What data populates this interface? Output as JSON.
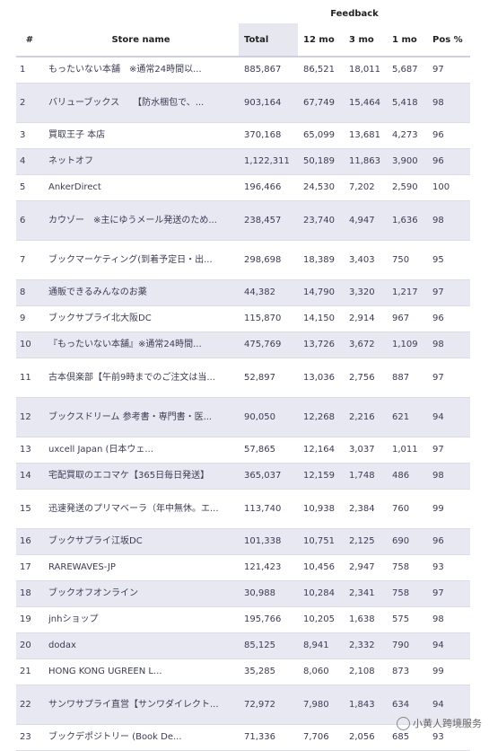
{
  "header": {
    "group_label": "Feedback",
    "columns": {
      "num": "#",
      "name": "Store name",
      "total": "Total",
      "m12": "12 mo",
      "m3": "3 mo",
      "m1": "1 mo",
      "pos": "Pos %"
    }
  },
  "rows": [
    {
      "num": "1",
      "name": "もったいない本舗　※通常24時間以...",
      "total": "885,867",
      "m12": "86,521",
      "m3": "18,011",
      "m1": "5,687",
      "pos": "97"
    },
    {
      "num": "2",
      "name": "バリューブックス　　【防水梱包で、...",
      "total": "903,164",
      "m12": "67,749",
      "m3": "15,464",
      "m1": "5,418",
      "pos": "98"
    },
    {
      "num": "3",
      "name": "買取王子 本店",
      "total": "370,168",
      "m12": "65,099",
      "m3": "13,681",
      "m1": "4,273",
      "pos": "96"
    },
    {
      "num": "4",
      "name": "ネットオフ",
      "total": "1,122,311",
      "m12": "50,189",
      "m3": "11,863",
      "m1": "3,900",
      "pos": "96"
    },
    {
      "num": "5",
      "name": "AnkerDirect",
      "total": "196,466",
      "m12": "24,530",
      "m3": "7,202",
      "m1": "2,590",
      "pos": "100"
    },
    {
      "num": "6",
      "name": "カウゾー　※主にゆうメール発送のため...",
      "total": "238,457",
      "m12": "23,740",
      "m3": "4,947",
      "m1": "1,636",
      "pos": "98"
    },
    {
      "num": "7",
      "name": "ブックマーケティング(到着予定日・出...",
      "total": "298,698",
      "m12": "18,389",
      "m3": "3,403",
      "m1": "750",
      "pos": "95"
    },
    {
      "num": "8",
      "name": "通販できるみんなのお薬",
      "total": "44,382",
      "m12": "14,790",
      "m3": "3,320",
      "m1": "1,217",
      "pos": "97"
    },
    {
      "num": "9",
      "name": "ブックサプライ北大阪DC",
      "total": "115,870",
      "m12": "14,150",
      "m3": "2,914",
      "m1": "967",
      "pos": "96"
    },
    {
      "num": "10",
      "name": "『もったいない本舗』※通常24時間...",
      "total": "475,769",
      "m12": "13,726",
      "m3": "3,672",
      "m1": "1,109",
      "pos": "98"
    },
    {
      "num": "11",
      "name": "古本倶楽部【午前9時までのご注文は当...",
      "total": "52,897",
      "m12": "13,036",
      "m3": "2,756",
      "m1": "887",
      "pos": "97"
    },
    {
      "num": "12",
      "name": "ブックスドリーム 参考書・専門書・医...",
      "total": "90,050",
      "m12": "12,268",
      "m3": "2,216",
      "m1": "621",
      "pos": "94"
    },
    {
      "num": "13",
      "name": "uxcell Japan (日本ウェ...",
      "total": "57,865",
      "m12": "12,164",
      "m3": "3,037",
      "m1": "1,011",
      "pos": "97"
    },
    {
      "num": "14",
      "name": "宅配買取のエコマケ【365日毎日発送】",
      "total": "365,037",
      "m12": "12,159",
      "m3": "1,748",
      "m1": "486",
      "pos": "98"
    },
    {
      "num": "15",
      "name": "迅速発送のプリマベーラ（年中無休。エ...",
      "total": "113,740",
      "m12": "10,938",
      "m3": "2,384",
      "m1": "760",
      "pos": "99"
    },
    {
      "num": "16",
      "name": "ブックサプライ江坂DC",
      "total": "101,338",
      "m12": "10,751",
      "m3": "2,125",
      "m1": "690",
      "pos": "96"
    },
    {
      "num": "17",
      "name": "RAREWAVES-JP",
      "total": "121,423",
      "m12": "10,456",
      "m3": "2,947",
      "m1": "758",
      "pos": "93"
    },
    {
      "num": "18",
      "name": "ブックオフオンライン",
      "total": "30,988",
      "m12": "10,284",
      "m3": "2,341",
      "m1": "758",
      "pos": "97"
    },
    {
      "num": "19",
      "name": "jnhショップ",
      "total": "195,766",
      "m12": "10,205",
      "m3": "1,638",
      "m1": "575",
      "pos": "98"
    },
    {
      "num": "20",
      "name": "dodax",
      "total": "85,125",
      "m12": "8,941",
      "m3": "2,332",
      "m1": "790",
      "pos": "94"
    },
    {
      "num": "21",
      "name": "HONG KONG UGREEN L...",
      "total": "35,285",
      "m12": "8,060",
      "m3": "2,108",
      "m1": "873",
      "pos": "99"
    },
    {
      "num": "22",
      "name": "サンワサプライ直営【サンワダイレクト...",
      "total": "72,972",
      "m12": "7,980",
      "m3": "1,843",
      "m1": "634",
      "pos": "94"
    },
    {
      "num": "23",
      "name": "ブックデポジトリー (Book De...",
      "total": "71,336",
      "m12": "7,706",
      "m3": "2,056",
      "m1": "685",
      "pos": "93"
    }
  ],
  "watermark": "小黄人跨境服务"
}
